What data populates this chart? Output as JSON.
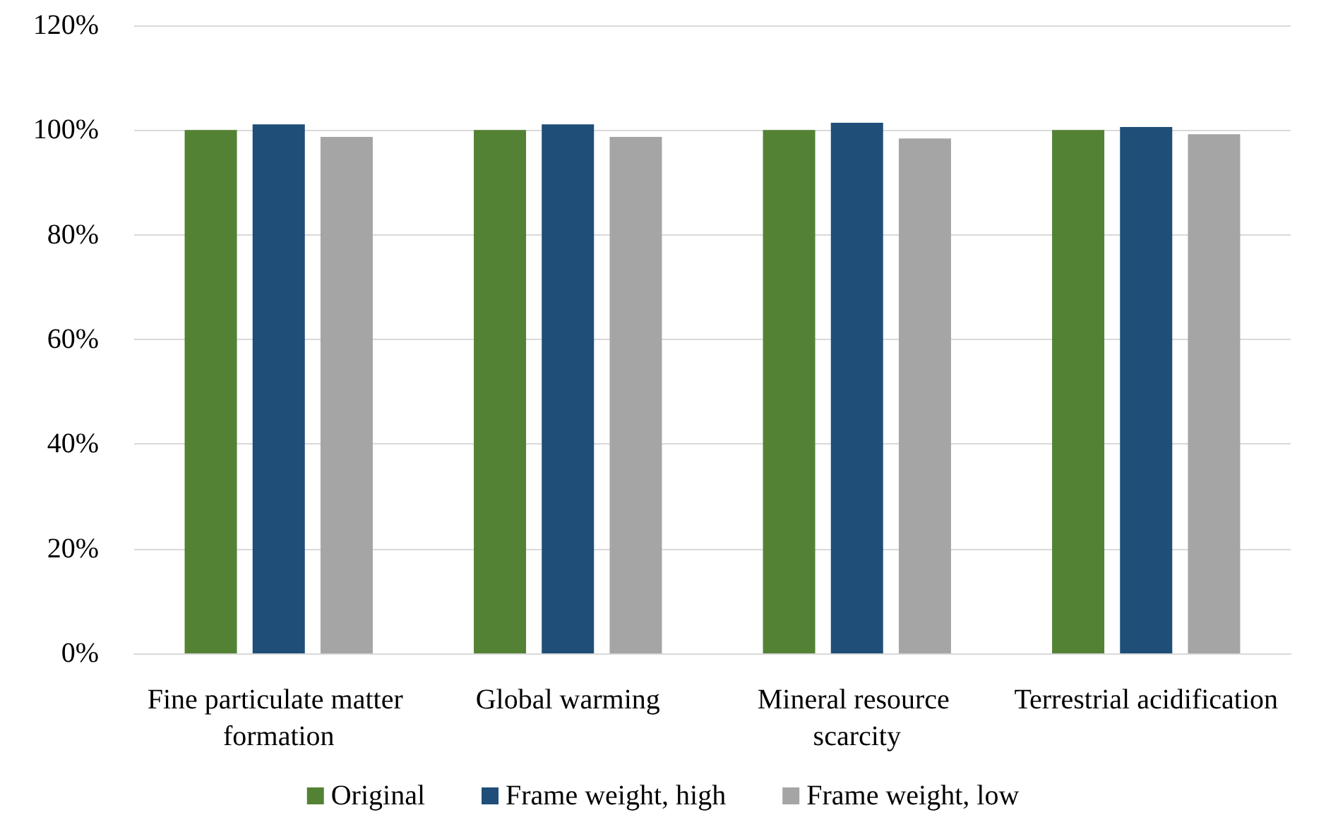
{
  "chart_data": {
    "type": "bar",
    "categories": [
      "Fine particulate matter formation",
      "Global warming",
      "Mineral resource scarcity",
      "Terrestrial acidification"
    ],
    "series": [
      {
        "name": "Original",
        "color": "#548235",
        "values": [
          100,
          100,
          100,
          100
        ]
      },
      {
        "name": "Frame weight, high",
        "color": "#1f4e79",
        "values": [
          101.1,
          101.1,
          101.4,
          100.6
        ]
      },
      {
        "name": "Frame weight, low",
        "color": "#a5a5a5",
        "values": [
          98.7,
          98.7,
          98.4,
          99.2
        ]
      }
    ],
    "ylim": [
      0,
      120
    ],
    "yticks": [
      {
        "value": 0,
        "label": "0%"
      },
      {
        "value": 20,
        "label": "20%"
      },
      {
        "value": 40,
        "label": "40%"
      },
      {
        "value": 60,
        "label": "60%"
      },
      {
        "value": 80,
        "label": "80%"
      },
      {
        "value": 100,
        "label": "100%"
      },
      {
        "value": 120,
        "label": "120%"
      }
    ],
    "grid": "y",
    "legend": "bottom"
  }
}
